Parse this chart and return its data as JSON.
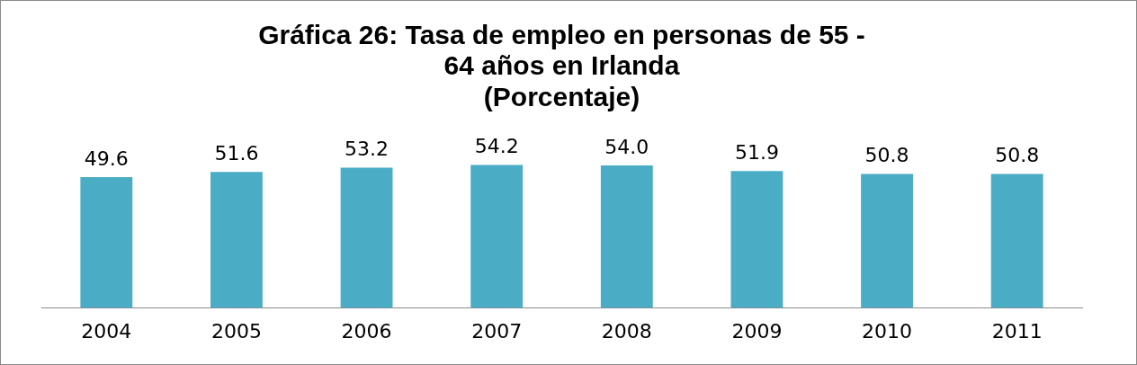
{
  "chart_data": {
    "type": "bar",
    "title": "Gráfica 26: Tasa de empleo en personas de 55 -\n64 años en Irlanda\n(Porcentaje)",
    "categories": [
      "2004",
      "2005",
      "2006",
      "2007",
      "2008",
      "2009",
      "2010",
      "2011"
    ],
    "values": [
      49.6,
      51.6,
      53.2,
      54.2,
      54.0,
      51.9,
      50.8,
      50.8
    ],
    "value_labels": [
      "49.6",
      "51.6",
      "53.2",
      "54.2",
      "54.0",
      "51.9",
      "50.8",
      "50.8"
    ],
    "color": "#4bacc6",
    "tick_labels": "x",
    "grid": false,
    "legend": false
  }
}
